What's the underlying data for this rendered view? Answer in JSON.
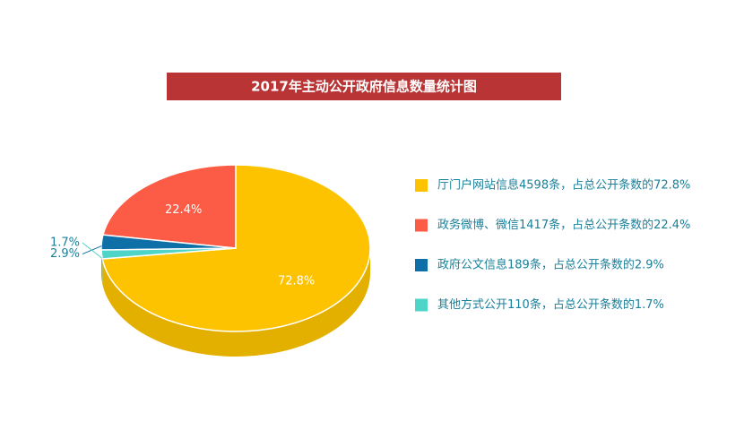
{
  "chart_data": {
    "type": "pie",
    "title": "2017年主动公开政府信息数量统计图",
    "categories": [
      "厅门户网站信息4598条，占总公开条数的72.8%",
      "政务微博、微信1417条，占总公开条数的22.4%",
      "政府公文信息189条，占总公开条数的2.9%",
      "其他方式公开110条，占总公开条数的1.7%"
    ],
    "values": [
      72.8,
      22.4,
      2.9,
      1.7
    ],
    "value_labels": [
      "72.8%",
      "22.4%",
      "2.9%",
      "1.7%"
    ],
    "colors": [
      "#fdc300",
      "#fc5b45",
      "#0e70a6",
      "#4fd4c8"
    ],
    "legend": "right"
  }
}
